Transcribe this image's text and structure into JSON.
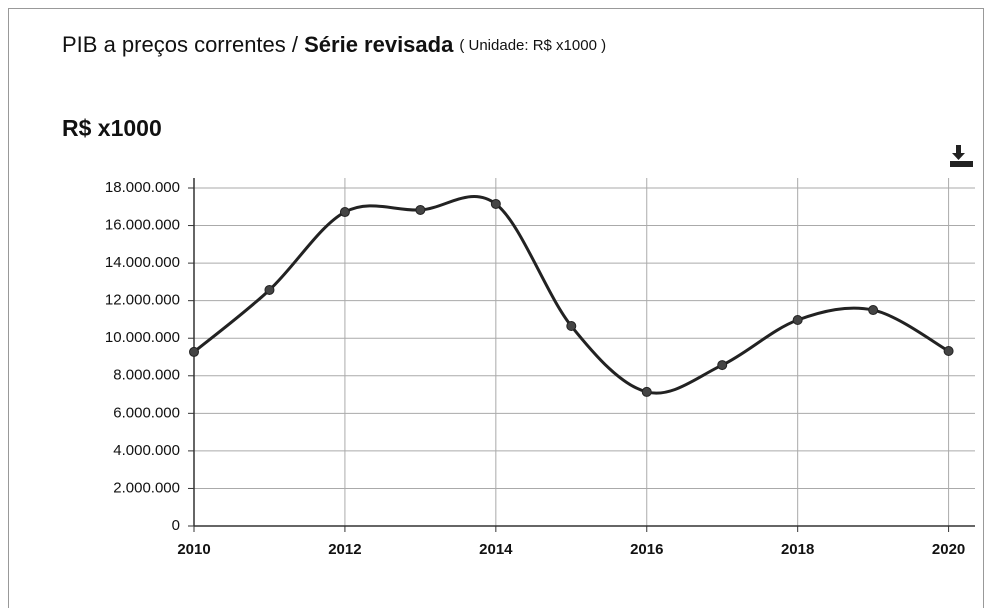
{
  "chart_data": {
    "type": "line",
    "title": "PIB a preços correntes / ",
    "title_bold": "Série revisada",
    "title_unit": "( Unidade: R$ x1000 )",
    "y_label": "R$ x1000",
    "x": [
      2010,
      2011,
      2012,
      2013,
      2014,
      2015,
      2016,
      2017,
      2018,
      2019,
      2020
    ],
    "series": [
      {
        "name": "PIB",
        "color": "#222222",
        "values": [
          9270000,
          12570000,
          16720000,
          16830000,
          17150000,
          10650000,
          7140000,
          8570000,
          10970000,
          11500000,
          9320000
        ]
      }
    ],
    "xlim": [
      2010,
      2020.35
    ],
    "xticks": [
      2010,
      2012,
      2014,
      2016,
      2018,
      2020
    ],
    "ylim": [
      0,
      18000000
    ],
    "yticks": [
      0,
      {
        "value": 2000000,
        "label": "2.000.000"
      },
      {
        "value": 4000000,
        "label": "4.000.000"
      },
      {
        "value": 6000000,
        "label": "6.000.000"
      },
      {
        "value": 8000000,
        "label": "8.000.000"
      },
      {
        "value": 10000000,
        "label": "10.000.000"
      },
      {
        "value": 12000000,
        "label": "12.000.000"
      },
      {
        "value": 14000000,
        "label": "14.000.000"
      },
      {
        "value": 16000000,
        "label": "16.000.000"
      },
      {
        "value": 18000000,
        "label": "18.000.000"
      }
    ],
    "grid": true
  }
}
